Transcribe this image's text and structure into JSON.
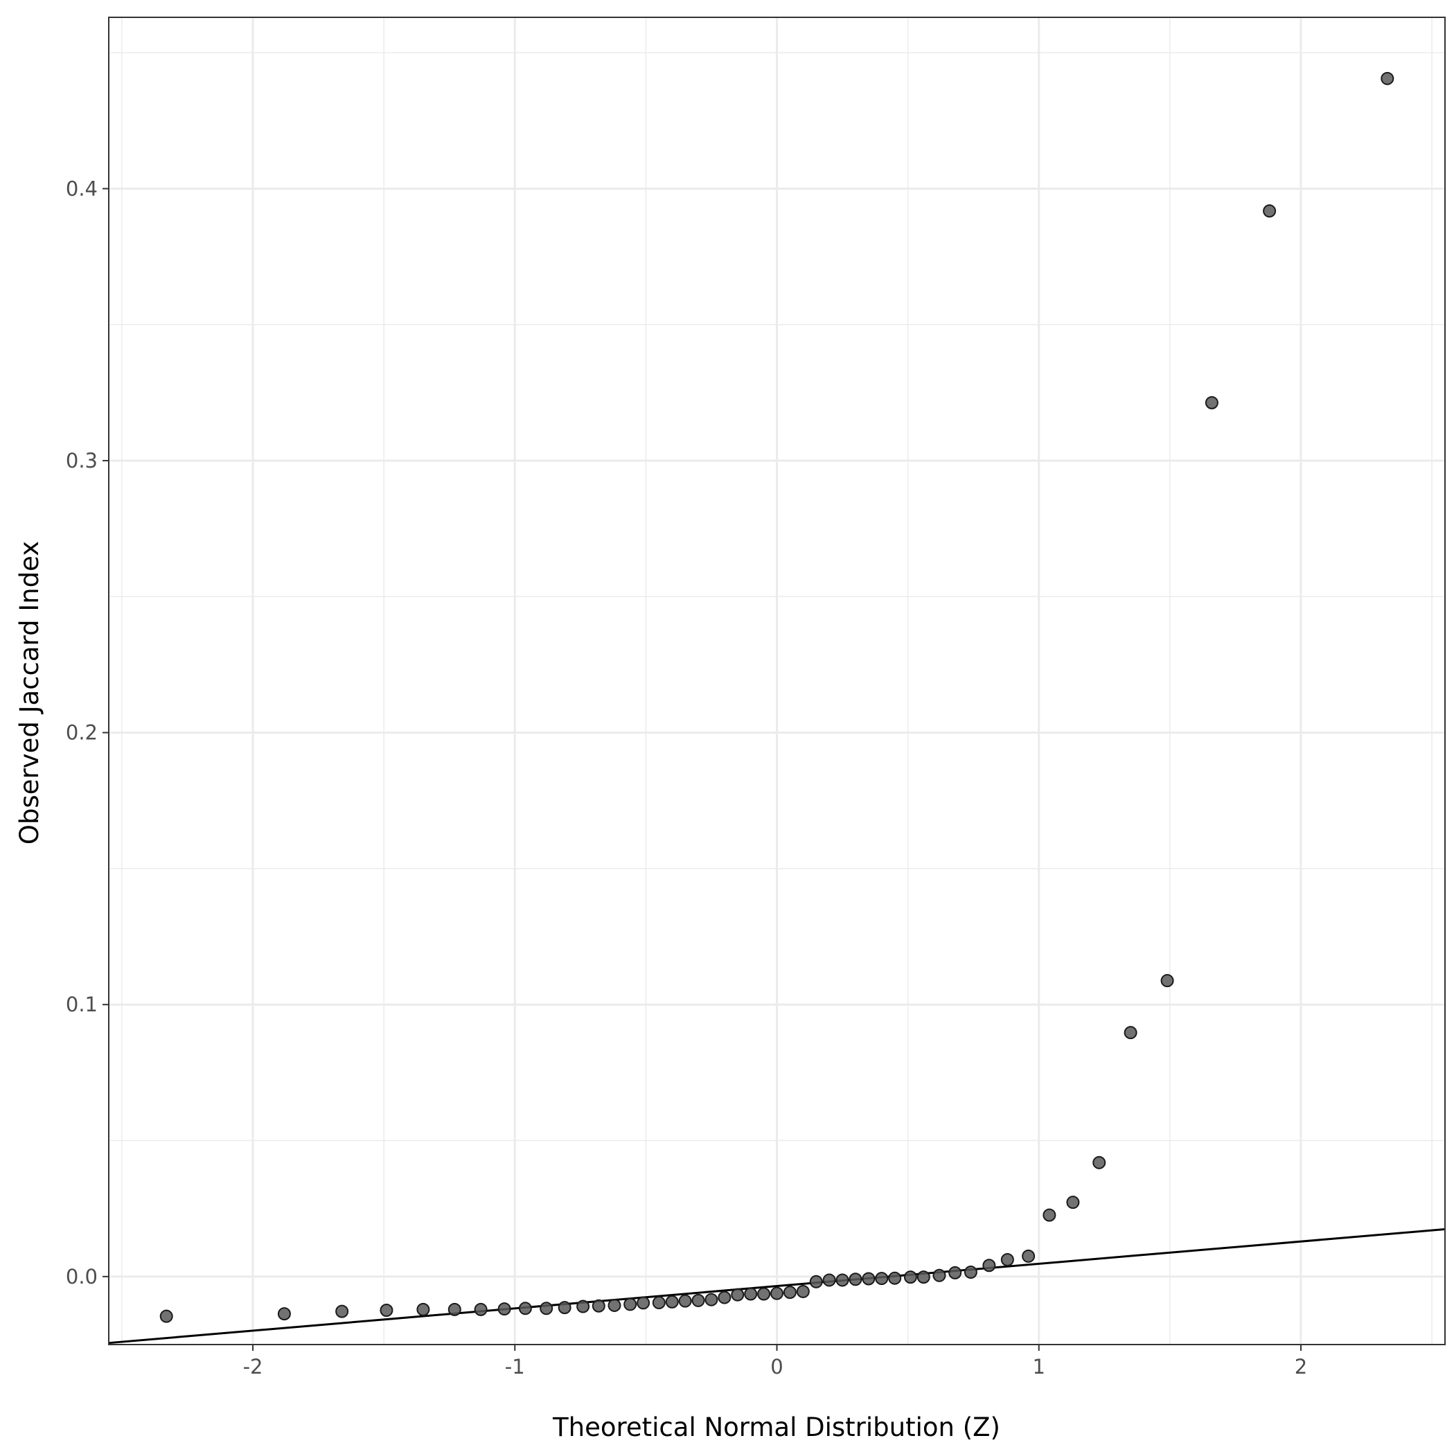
{
  "chart_data": {
    "type": "scatter",
    "title": "",
    "xlabel": "Theoretical Normal Distribution (Z)",
    "ylabel": "Observed Jaccard Index",
    "xlim": [
      -2.55,
      2.55
    ],
    "ylim": [
      -0.025,
      0.463
    ],
    "x_ticks": [
      -2,
      -1,
      0,
      1,
      2
    ],
    "x_tick_labels": [
      "-2",
      "-1",
      "0",
      "1",
      "2"
    ],
    "y_ticks": [
      0.0,
      0.1,
      0.2,
      0.3,
      0.4
    ],
    "y_tick_labels": [
      "0.0",
      "0.1",
      "0.2",
      "0.3",
      "0.4"
    ],
    "grid": true,
    "theme": "bw",
    "colors": {
      "point": "#595959",
      "line": "#000000",
      "grid": "#ebebeb",
      "panel_border": "#333333"
    },
    "reference_line": {
      "intercept": -0.0035,
      "slope": 0.0082
    },
    "points": {
      "x": [
        -2.33,
        -1.88,
        -1.66,
        -1.49,
        -1.35,
        -1.23,
        -1.13,
        -1.04,
        -0.96,
        -0.88,
        -0.81,
        -0.74,
        -0.68,
        -0.62,
        -0.56,
        -0.51,
        -0.45,
        -0.4,
        -0.35,
        -0.3,
        -0.25,
        -0.2,
        -0.15,
        -0.1,
        -0.05,
        0.0,
        0.05,
        0.1,
        0.15,
        0.2,
        0.25,
        0.3,
        0.35,
        0.4,
        0.45,
        0.51,
        0.56,
        0.62,
        0.68,
        0.74,
        0.81,
        0.88,
        0.96,
        1.04,
        1.13,
        1.23,
        1.35,
        1.49,
        1.66,
        1.88,
        2.33
      ],
      "y": [
        -0.0146,
        -0.0137,
        -0.0128,
        -0.0124,
        -0.0121,
        -0.0121,
        -0.0121,
        -0.0119,
        -0.0117,
        -0.0117,
        -0.0114,
        -0.011,
        -0.0108,
        -0.0106,
        -0.0102,
        -0.0097,
        -0.0096,
        -0.0093,
        -0.009,
        -0.0088,
        -0.0085,
        -0.0077,
        -0.0067,
        -0.0064,
        -0.0064,
        -0.0062,
        -0.0058,
        -0.0055,
        -0.0019,
        -0.0013,
        -0.0013,
        -0.001,
        -0.0008,
        -0.0007,
        -0.0006,
        -0.0002,
        -0.0002,
        0.0004,
        0.0014,
        0.0016,
        0.0041,
        0.0062,
        0.0075,
        0.0226,
        0.0273,
        0.0419,
        0.0897,
        0.1088,
        0.3213,
        0.3918,
        0.4405
      ]
    }
  }
}
